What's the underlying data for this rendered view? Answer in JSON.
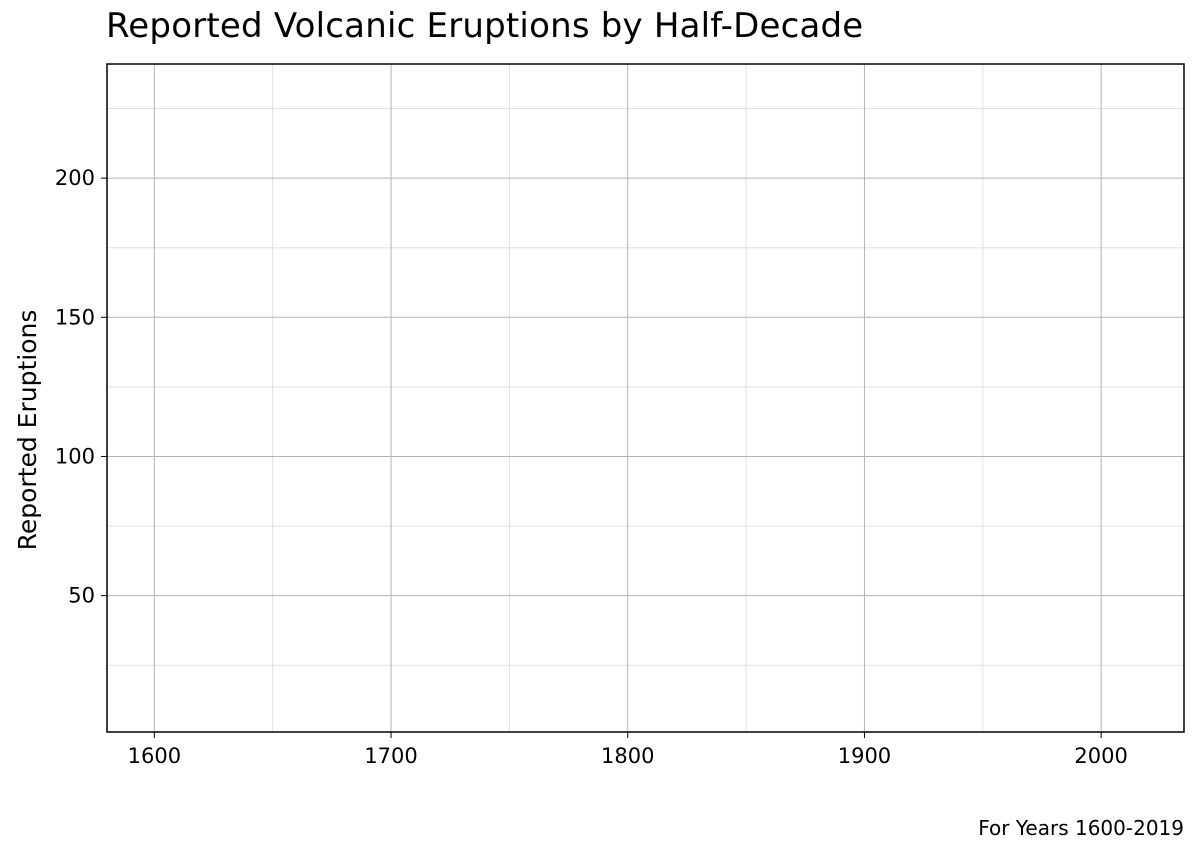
{
  "chart_data": {
    "type": "bar",
    "title": "Reported Volcanic Eruptions by Half-Decade",
    "caption": "For Years 1600-2019",
    "xlabel": "",
    "ylabel": "Reported Eruptions",
    "xlim": [
      1580,
      2035
    ],
    "ylim": [
      1,
      241
    ],
    "x_ticks": [
      1600,
      1700,
      1800,
      1900,
      2000
    ],
    "x_ticks_minor": [
      1650,
      1750,
      1850,
      1950
    ],
    "y_ticks": [
      50,
      100,
      150,
      200
    ],
    "y_ticks_minor": [
      25,
      75,
      125,
      175,
      225
    ],
    "grid": true,
    "x": [],
    "values": []
  },
  "colors": {
    "grid_major": "#b3b3b3",
    "grid_minor": "#e0e0e0",
    "panel_border": "#000000"
  }
}
